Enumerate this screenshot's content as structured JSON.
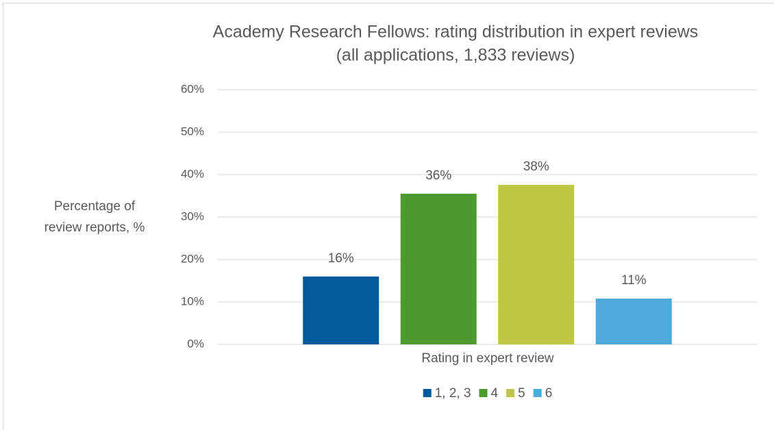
{
  "chart_data": {
    "type": "bar",
    "title": "Academy Research Fellows: rating distribution in expert reviews",
    "subtitle": "(all applications, 1,833 reviews)",
    "y_label": [
      "Percentage of",
      "review reports, %"
    ],
    "x_label": "Rating in expert review",
    "categories": [
      null
    ],
    "series": [
      {
        "name": "1, 2, 3",
        "color": "#005a9c",
        "values": [
          16
        ],
        "value_labels": [
          "16%"
        ]
      },
      {
        "name": "4",
        "color": "#4d9b2f",
        "values": [
          35.5
        ],
        "value_labels": [
          "36%"
        ]
      },
      {
        "name": "5",
        "color": "#bec845",
        "values": [
          37.6
        ],
        "value_labels": [
          "38%"
        ]
      },
      {
        "name": "6",
        "color": "#4faadc",
        "values": [
          10.8
        ],
        "value_labels": [
          "11%"
        ]
      }
    ],
    "ylim": [
      0,
      60
    ],
    "yticks": [
      {
        "value": 0,
        "label": "0%"
      },
      {
        "value": 10,
        "label": "10%"
      },
      {
        "value": 20,
        "label": "20%"
      },
      {
        "value": 30,
        "label": "30%"
      },
      {
        "value": 40,
        "label": "40%"
      },
      {
        "value": 50,
        "label": "50%"
      },
      {
        "value": 60,
        "label": "60%"
      }
    ],
    "grid": true,
    "legend": "bottom"
  }
}
